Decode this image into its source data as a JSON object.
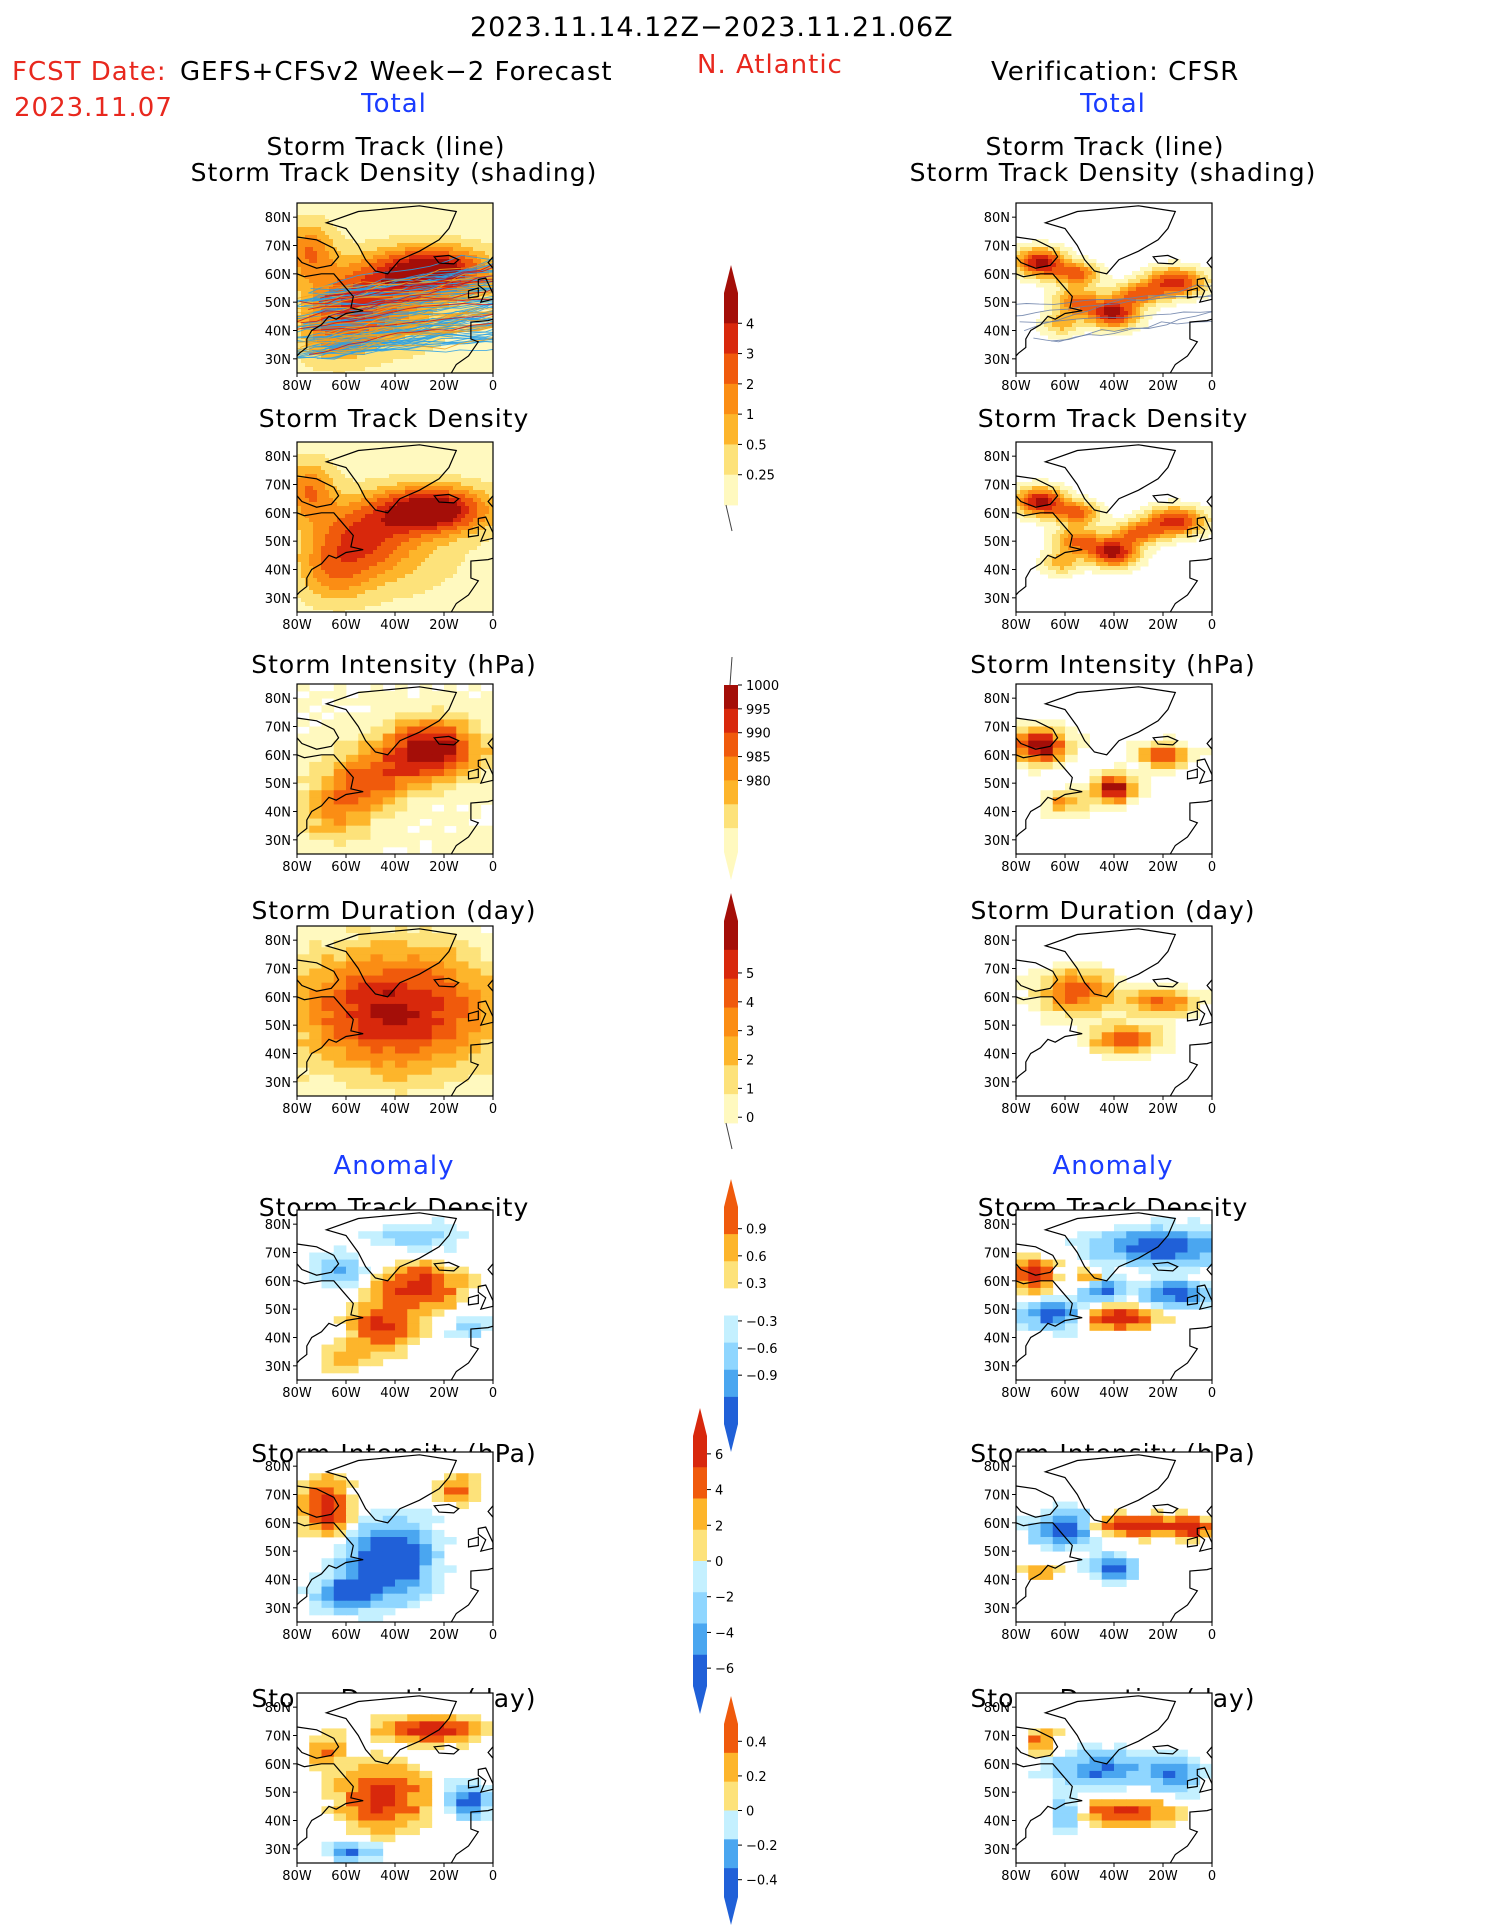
{
  "header": {
    "date_range": "2023.11.14.12Z−2023.11.21.06Z",
    "fcst_label": "FCST Date:",
    "fcst_model": "GEFS+CFSv2 Week−2 Forecast",
    "fcst_date": "2023.11.07",
    "region": "N. Atlantic",
    "verification": "Verification: CFSR",
    "left_total": "Total",
    "right_total": "Total",
    "left_anomaly": "Anomaly",
    "right_anomaly": "Anomaly"
  },
  "colors": {
    "warm": [
      "#fff9bf",
      "#fde27a",
      "#fdb52b",
      "#fb8d14",
      "#f05a0c",
      "#d8280c",
      "#a40e08"
    ],
    "cool": [
      "#c4f0ff",
      "#8fd6ff",
      "#4aa6f0",
      "#2060d8"
    ],
    "text_red": "#e8281e",
    "text_blue": "#1a3cff",
    "land_outline": "#000000",
    "track_lines": "#2aa0e6"
  },
  "titles": {
    "track_line": "Storm Track (line)",
    "track_shading": "Storm Track Density (shading)",
    "density": "Storm Track Density",
    "intensity": "Storm Intensity (hPa)",
    "duration": "Storm Duration (day)"
  },
  "axes": {
    "lon_ticks": [
      "80W",
      "60W",
      "40W",
      "20W",
      "0"
    ],
    "lat_ticks": [
      "80N",
      "70N",
      "60N",
      "50N",
      "40N",
      "30N"
    ],
    "lon_range": [
      -80,
      0
    ],
    "lat_range": [
      25,
      85
    ]
  },
  "colorbars": [
    {
      "id": "density",
      "labels": [
        "0.25",
        "0.5",
        "1",
        "2",
        "3",
        "4"
      ]
    },
    {
      "id": "intensity",
      "labels": [
        "1000",
        "995",
        "990",
        "985",
        "980"
      ]
    },
    {
      "id": "duration",
      "labels": [
        "0",
        "1",
        "2",
        "3",
        "4",
        "5"
      ]
    },
    {
      "id": "density_anom",
      "labels": [
        "0.9",
        "0.6",
        "0.3",
        "−0.3",
        "−0.6",
        "−0.9"
      ]
    },
    {
      "id": "intensity_anom",
      "labels": [
        "6",
        "4",
        "2",
        "0",
        "−2",
        "−4",
        "−6"
      ]
    },
    {
      "id": "duration_anom",
      "labels": [
        "0.4",
        "0.2",
        "0",
        "−0.2",
        "−0.4"
      ]
    }
  ],
  "chart_data": [
    {
      "type": "heatmap",
      "panel": "forecast_track_density_with_tracks",
      "title": "Storm Track (line) / Storm Track Density (shading)",
      "blobs": [
        {
          "lon": -25,
          "lat": 60,
          "level": 5
        },
        {
          "lon": -60,
          "lat": 60,
          "level": 3
        },
        {
          "lon": -45,
          "lat": 45,
          "level": 2
        }
      ]
    },
    {
      "type": "heatmap",
      "panel": "cfsr_track_density_with_tracks",
      "title": "Storm Track (line) / Storm Track Density (shading)",
      "blobs": [
        {
          "lon": -70,
          "lat": 63,
          "level": 5
        },
        {
          "lon": -40,
          "lat": 47,
          "level": 5
        },
        {
          "lon": -15,
          "lat": 57,
          "level": 4
        }
      ]
    },
    {
      "type": "heatmap",
      "panel": "forecast_track_density",
      "title": "Storm Track Density",
      "blobs": [
        {
          "lon": -25,
          "lat": 60,
          "level": 6
        },
        {
          "lon": -50,
          "lat": 50,
          "level": 3
        }
      ]
    },
    {
      "type": "heatmap",
      "panel": "cfsr_track_density",
      "title": "Storm Track Density",
      "blobs": [
        {
          "lon": -70,
          "lat": 63,
          "level": 6
        },
        {
          "lon": -40,
          "lat": 45,
          "level": 6
        },
        {
          "lon": -15,
          "lat": 57,
          "level": 5
        }
      ]
    },
    {
      "type": "heatmap",
      "panel": "forecast_intensity",
      "title": "Storm Intensity (hPa)",
      "value_range_hPa": [
        980,
        1000
      ],
      "core_hPa": 985
    },
    {
      "type": "heatmap",
      "panel": "cfsr_intensity",
      "title": "Storm Intensity (hPa)",
      "value_range_hPa": [
        980,
        1000
      ],
      "core_hPa": 983
    },
    {
      "type": "heatmap",
      "panel": "forecast_duration",
      "title": "Storm Duration (day)",
      "value_range_day": [
        0,
        5
      ],
      "typical_day": 3.5
    },
    {
      "type": "heatmap",
      "panel": "cfsr_duration",
      "title": "Storm Duration (day)",
      "value_range_day": [
        0,
        5
      ],
      "typical_day": 3
    },
    {
      "type": "heatmap",
      "panel": "forecast_density_anomaly",
      "title": "Storm Track Density",
      "value_range": [
        -0.9,
        0.9
      ]
    },
    {
      "type": "heatmap",
      "panel": "cfsr_density_anomaly",
      "title": "Storm Track Density",
      "value_range": [
        -0.9,
        0.9
      ]
    },
    {
      "type": "heatmap",
      "panel": "forecast_intensity_anomaly",
      "title": "Storm Intensity (hPa)",
      "value_range": [
        -6,
        6
      ]
    },
    {
      "type": "heatmap",
      "panel": "cfsr_intensity_anomaly",
      "title": "Storm Intensity (hPa)",
      "value_range": [
        -6,
        6
      ]
    },
    {
      "type": "heatmap",
      "panel": "forecast_duration_anomaly",
      "title": "Storm Duration (day)",
      "value_range": [
        -0.4,
        0.4
      ]
    },
    {
      "type": "heatmap",
      "panel": "cfsr_duration_anomaly",
      "title": "Storm Duration (day)",
      "value_range": [
        -0.4,
        0.4
      ]
    }
  ]
}
